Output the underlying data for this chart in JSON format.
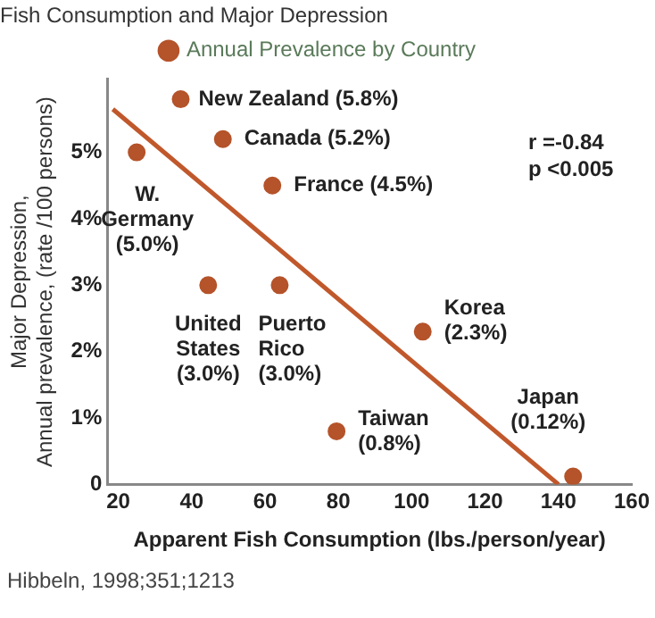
{
  "chart_data": {
    "type": "scatter",
    "title": "Fish Consumption and Major Depression",
    "xlabel": "Apparent Fish Consumption (lbs./person/year)",
    "ylabel": "Major Depression,\nAnnual prevalence, (rate /100 persons)",
    "series": [
      {
        "name": "Annual Prevalence by Country",
        "marker": "circle",
        "color": "#b5532a",
        "x": [
          37,
          48.5,
          25,
          62,
          44.5,
          64,
          103,
          79.5,
          144
        ],
        "values": [
          5.8,
          5.2,
          5.0,
          4.5,
          3.0,
          3.0,
          2.3,
          0.8,
          0.12
        ]
      },
      {
        "type": "line",
        "marker": "none",
        "color": "#c0582c",
        "x": [
          18.5,
          140
        ],
        "values": [
          5.65,
          0
        ]
      }
    ],
    "xlim": [
      17,
      160
    ],
    "xticks": [
      20,
      40,
      60,
      80,
      100,
      120,
      140,
      160
    ],
    "ylim": [
      0,
      6.1
    ],
    "yticks": [
      {
        "value": 0,
        "label": "0"
      },
      {
        "value": 1,
        "label": "1%"
      },
      {
        "value": 2,
        "label": "2%"
      },
      {
        "value": 3,
        "label": "3%"
      },
      {
        "value": 4,
        "label": "4%"
      },
      {
        "value": 5,
        "label": "5%"
      }
    ],
    "grid": false,
    "legend": "top",
    "annotations": [
      {
        "text": "New Zealand (5.8%)",
        "x": 37,
        "y": 5.8
      },
      {
        "text": "Canada (5.2%)",
        "x": 48.5,
        "y": 5.2
      },
      {
        "text": "W.\nGermany\n(5.0%)",
        "x": 25,
        "y": 5.0
      },
      {
        "text": "France (4.5%)",
        "x": 62,
        "y": 4.5
      },
      {
        "text": "United\nStates\n(3.0%)",
        "x": 44.5,
        "y": 3.0
      },
      {
        "text": "Puerto\nRico\n(3.0%)",
        "x": 64,
        "y": 3.0
      },
      {
        "text": "Korea\n(2.3%)",
        "x": 103,
        "y": 2.3
      },
      {
        "text": "Taiwan\n(0.8%)",
        "x": 79.5,
        "y": 0.8
      },
      {
        "text": "Japan\n(0.12%)",
        "x": 144,
        "y": 0.12
      },
      "r =-0.84\np <0.005",
      "Hibbeln, 1998;351;1213"
    ]
  }
}
